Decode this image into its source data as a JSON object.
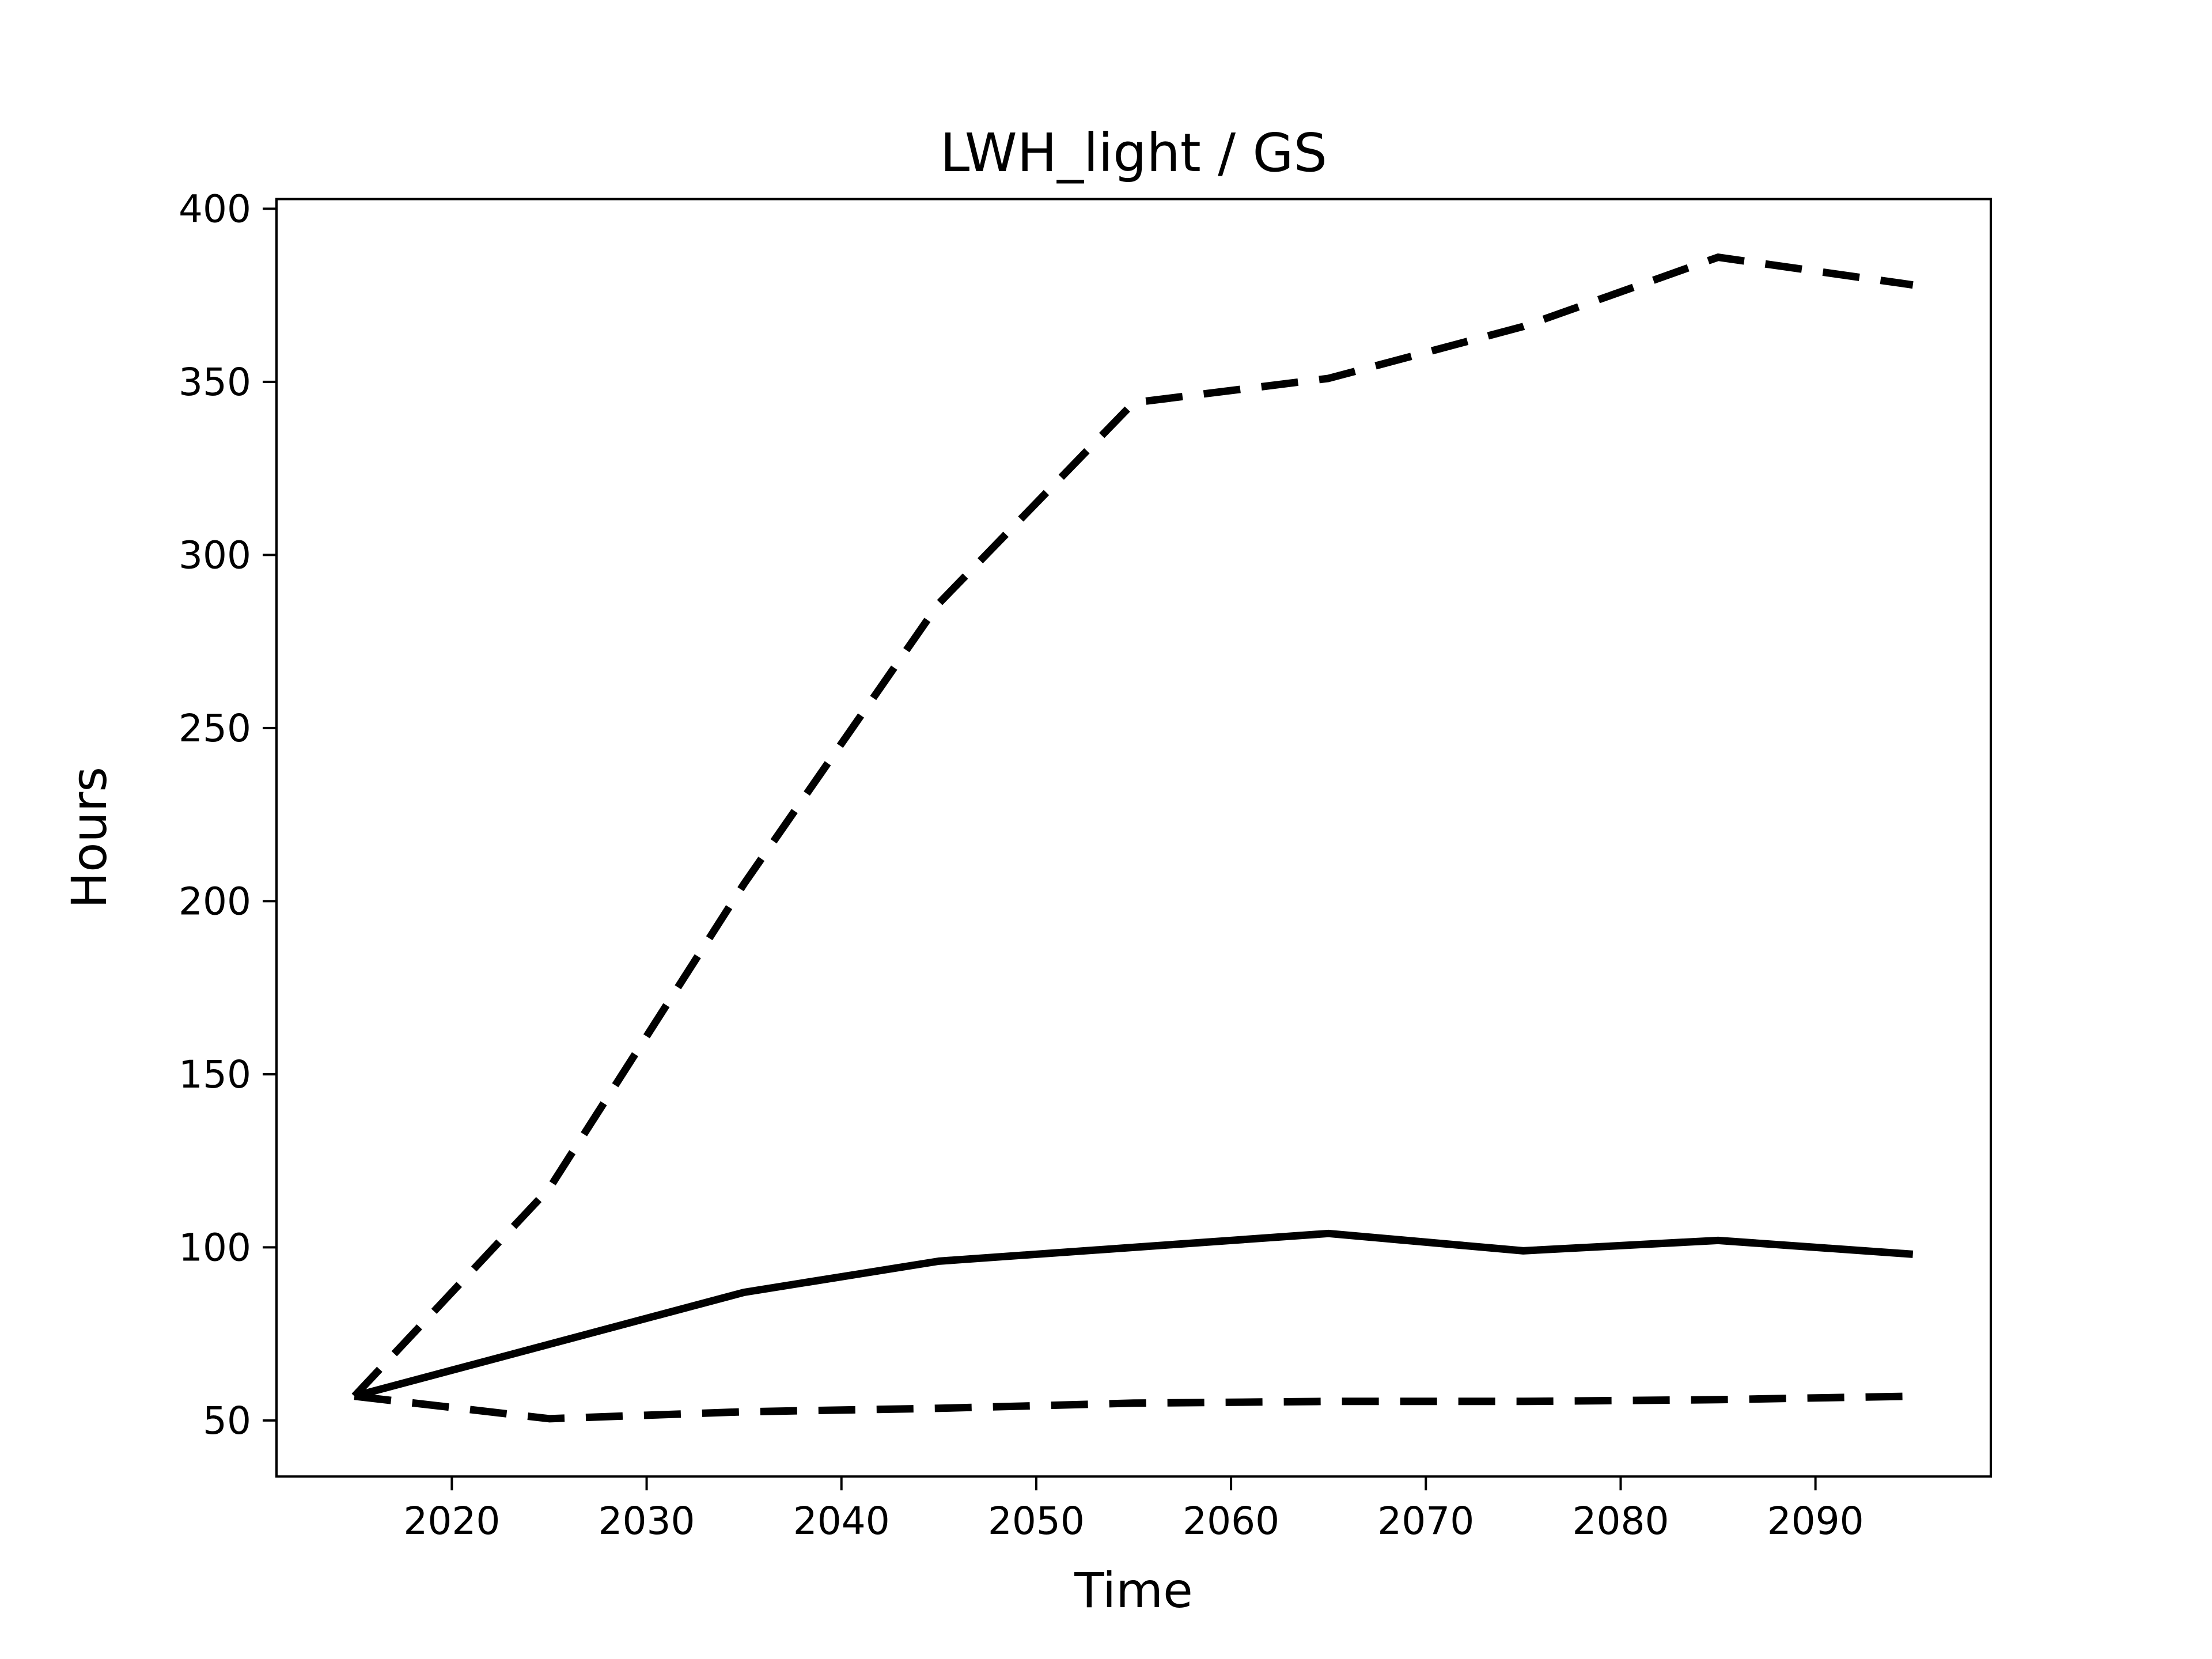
{
  "figure": {
    "title": "LWH_light / GS",
    "xlabel": "Time",
    "ylabel": "Hours",
    "background_color": "#ffffff",
    "axes_color": "#000000",
    "line_color": "#000000"
  },
  "chart_data": {
    "type": "line",
    "title": "LWH_light / GS",
    "xlabel": "Time",
    "ylabel": "Hours",
    "x": [
      2015,
      2025,
      2035,
      2045,
      2055,
      2065,
      2075,
      2085,
      2095
    ],
    "series": [
      {
        "name": "upper-bound-dashed",
        "style": "dashed",
        "color": "#000000",
        "values": [
          57,
          117,
          205,
          286,
          344,
          351,
          366,
          386,
          378
        ]
      },
      {
        "name": "mean-solid",
        "style": "solid",
        "color": "#000000",
        "values": [
          57,
          72,
          87,
          96,
          100,
          104,
          99,
          102,
          98
        ]
      },
      {
        "name": "lower-bound-dashed",
        "style": "dashed",
        "color": "#000000",
        "values": [
          57,
          50.5,
          52.5,
          53.5,
          55,
          55.5,
          55.5,
          56,
          57
        ]
      }
    ],
    "xticks": [
      2020,
      2030,
      2040,
      2050,
      2060,
      2070,
      2080,
      2090
    ],
    "yticks": [
      50,
      100,
      150,
      200,
      250,
      300,
      350,
      400
    ],
    "xlim": [
      2011,
      2099
    ],
    "ylim": [
      33.8,
      402.8
    ],
    "grid": false,
    "legend": null
  }
}
